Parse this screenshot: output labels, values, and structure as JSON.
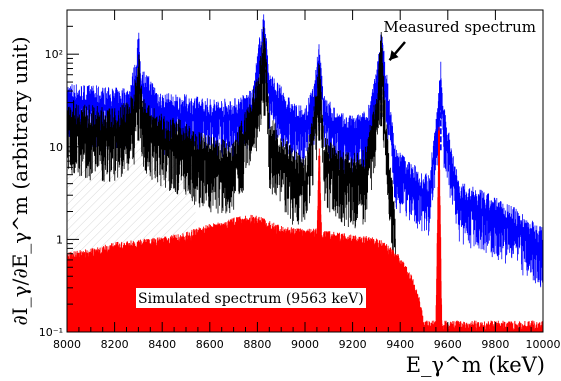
{
  "chart_data": {
    "type": "line",
    "title": "",
    "xlabel": "E_γ^m (keV)",
    "ylabel": "∂I_γ/∂E_γ^m (arbitrary unit)",
    "xlim": [
      8000,
      10000
    ],
    "ylim": [
      0.1,
      300
    ],
    "yscale": "log",
    "grid": false,
    "x_ticks": [
      "8000",
      "8200",
      "8400",
      "8600",
      "8800",
      "9000",
      "9200",
      "9400",
      "9600",
      "9800",
      "10000"
    ],
    "y_ticks": [
      {
        "value": 0.1,
        "label": "10⁻¹"
      },
      {
        "value": 1,
        "label": "1"
      },
      {
        "value": 10,
        "label": "10"
      },
      {
        "value": 100,
        "label": "10²"
      }
    ],
    "series": [
      {
        "name": "Measured spectrum",
        "color": "#0000ff",
        "points": [
          [
            8000,
            30
          ],
          [
            8100,
            28
          ],
          [
            8200,
            26
          ],
          [
            8260,
            27
          ],
          [
            8290,
            55
          ],
          [
            8300,
            120
          ],
          [
            8310,
            45
          ],
          [
            8400,
            23
          ],
          [
            8500,
            22
          ],
          [
            8600,
            20
          ],
          [
            8700,
            20
          ],
          [
            8780,
            25
          ],
          [
            8810,
            100
          ],
          [
            8830,
            180
          ],
          [
            8850,
            40
          ],
          [
            8950,
            18
          ],
          [
            9000,
            16
          ],
          [
            9040,
            30
          ],
          [
            9060,
            90
          ],
          [
            9080,
            22
          ],
          [
            9150,
            14
          ],
          [
            9200,
            13
          ],
          [
            9260,
            15
          ],
          [
            9300,
            40
          ],
          [
            9320,
            120
          ],
          [
            9340,
            45
          ],
          [
            9380,
            6
          ],
          [
            9450,
            4
          ],
          [
            9520,
            3
          ],
          [
            9560,
            20
          ],
          [
            9570,
            55
          ],
          [
            9580,
            18
          ],
          [
            9650,
            2.5
          ],
          [
            9750,
            2
          ],
          [
            9850,
            1.5
          ],
          [
            9950,
            1
          ],
          [
            10000,
            0.8
          ]
        ]
      },
      {
        "name": "",
        "color": "#000000",
        "points": [
          [
            8000,
            18
          ],
          [
            8100,
            15
          ],
          [
            8200,
            14
          ],
          [
            8280,
            20
          ],
          [
            8300,
            70
          ],
          [
            8320,
            18
          ],
          [
            8400,
            12
          ],
          [
            8500,
            10
          ],
          [
            8540,
            8
          ],
          [
            8600,
            7
          ],
          [
            8700,
            6
          ],
          [
            8800,
            30
          ],
          [
            8830,
            130
          ],
          [
            8850,
            12
          ],
          [
            8950,
            5
          ],
          [
            9000,
            4
          ],
          [
            9050,
            25
          ],
          [
            9060,
            70
          ],
          [
            9080,
            7
          ],
          [
            9150,
            5
          ],
          [
            9200,
            4.5
          ],
          [
            9250,
            5
          ],
          [
            9300,
            20
          ],
          [
            9320,
            100
          ],
          [
            9340,
            12
          ],
          [
            9380,
            1
          ]
        ]
      },
      {
        "name": "Simulated spectrum (9563 keV)",
        "color": "#ff0000",
        "points": [
          [
            8000,
            0.55
          ],
          [
            8100,
            0.6
          ],
          [
            8200,
            0.7
          ],
          [
            8300,
            0.75
          ],
          [
            8400,
            0.8
          ],
          [
            8500,
            0.9
          ],
          [
            8540,
            1.0
          ],
          [
            8600,
            1.1
          ],
          [
            8700,
            1.3
          ],
          [
            8780,
            1.4
          ],
          [
            8820,
            1.3
          ],
          [
            8900,
            1.05
          ],
          [
            9000,
            1.0
          ],
          [
            9050,
            0.98
          ],
          [
            9060,
            8
          ],
          [
            9070,
            0.95
          ],
          [
            9100,
            0.92
          ],
          [
            9200,
            0.85
          ],
          [
            9300,
            0.8
          ],
          [
            9350,
            0.65
          ],
          [
            9400,
            0.5
          ],
          [
            9450,
            0.3
          ],
          [
            9480,
            0.18
          ],
          [
            9500,
            0.1
          ],
          [
            9550,
            0.1
          ],
          [
            9563,
            15
          ],
          [
            9575,
            0.1
          ],
          [
            10000,
            0.1
          ]
        ]
      }
    ],
    "annotations": [
      {
        "text": "Measured spectrum",
        "x": 9330,
        "y": 100
      },
      {
        "text": "Simulated spectrum (9563 keV)"
      }
    ]
  }
}
